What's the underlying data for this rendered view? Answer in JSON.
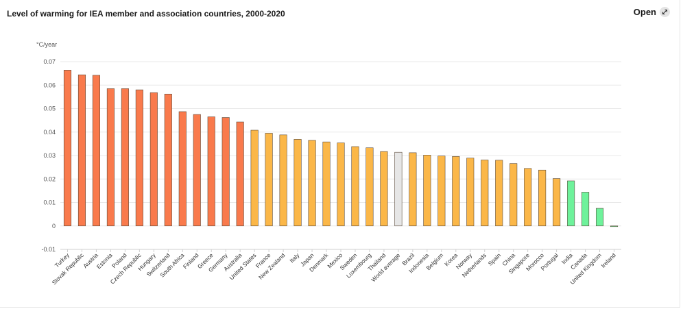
{
  "title": "Level of warming for IEA member and association countries, 2000-2020",
  "open_label": "Open",
  "open_icon": "expand-arrows-icon",
  "colors": {
    "high": "#f97a4c",
    "mid": "#fbb748",
    "low": "#6ef29b",
    "average": "#e6e6e6",
    "bar_stroke": "#5a4a3a"
  },
  "chart_data": {
    "type": "bar",
    "unit": "°C/year",
    "ylim": [
      -0.01,
      0.07
    ],
    "yticks": [
      "-0.01",
      "0",
      "0.01",
      "0.02",
      "0.03",
      "0.04",
      "0.05",
      "0.06",
      "0.07"
    ],
    "grid": true,
    "categories": [
      "Turkey",
      "Slovak Republic",
      "Austria",
      "Estonia",
      "Poland",
      "Czech Republic",
      "Hungary",
      "Switzerland",
      "South Africa",
      "Finland",
      "Greece",
      "Germany",
      "Australia",
      "United States",
      "France",
      "New Zealand",
      "Italy",
      "Japan",
      "Denmark",
      "Mexico",
      "Sweden",
      "Luxembourg",
      "Thailand",
      "World average",
      "Brazil",
      "Indonesia",
      "Belgium",
      "Korea",
      "Norway",
      "Netherlands",
      "Spain",
      "China",
      "Singapore",
      "Morocco",
      "Portugal",
      "India",
      "Canada",
      "United Kingdom",
      "Ireland"
    ],
    "values": [
      0.0664,
      0.0644,
      0.0642,
      0.0585,
      0.0585,
      0.058,
      0.0568,
      0.0562,
      0.0487,
      0.0475,
      0.0465,
      0.0462,
      0.0443,
      0.0408,
      0.0395,
      0.0388,
      0.0369,
      0.0365,
      0.0358,
      0.0354,
      0.0338,
      0.0333,
      0.0317,
      0.0314,
      0.0312,
      0.0302,
      0.0298,
      0.0296,
      0.0289,
      0.0281,
      0.028,
      0.0266,
      0.0245,
      0.0238,
      0.0202,
      0.0192,
      0.0144,
      0.0075,
      -0.0003
    ],
    "groups": [
      "high",
      "high",
      "high",
      "high",
      "high",
      "high",
      "high",
      "high",
      "high",
      "high",
      "high",
      "high",
      "high",
      "mid",
      "mid",
      "mid",
      "mid",
      "mid",
      "mid",
      "mid",
      "mid",
      "mid",
      "mid",
      "average",
      "mid",
      "mid",
      "mid",
      "mid",
      "mid",
      "mid",
      "mid",
      "mid",
      "mid",
      "mid",
      "mid",
      "low",
      "low",
      "low",
      "low"
    ]
  }
}
